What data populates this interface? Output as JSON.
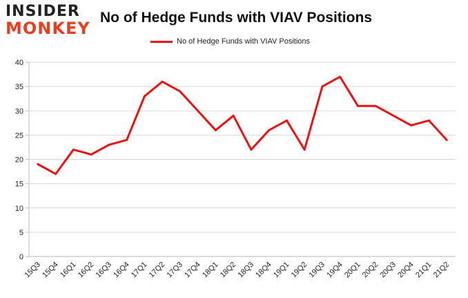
{
  "logo": {
    "line1": "INSIDER",
    "line2": "MONKEY"
  },
  "colors": {
    "line": "#ee1111",
    "grid": "#d9d9d9",
    "logo_accent": "#e8401e"
  },
  "chart_data": {
    "type": "line",
    "title": "No of Hedge Funds with VIAV Positions",
    "categories": [
      "15Q3",
      "15Q4",
      "16Q1",
      "16Q2",
      "16Q3",
      "16Q4",
      "17Q1",
      "17Q2",
      "17Q3",
      "17Q4",
      "18Q1",
      "18Q2",
      "18Q3",
      "18Q4",
      "19Q1",
      "19Q2",
      "19Q3",
      "19Q4",
      "20Q1",
      "20Q2",
      "20Q3",
      "20Q4",
      "21Q1",
      "21Q2"
    ],
    "series": [
      {
        "name": "No of Hedge Funds with VIAV Positions",
        "values": [
          19,
          17,
          22,
          21,
          23,
          24,
          33,
          36,
          34,
          30,
          26,
          29,
          22,
          26,
          28,
          22,
          35,
          37,
          31,
          31,
          29,
          27,
          28,
          24
        ]
      }
    ],
    "ylim": [
      0,
      40
    ],
    "yticks": [
      0,
      5,
      10,
      15,
      20,
      25,
      30,
      35,
      40
    ],
    "grid": true,
    "legend": "top-center"
  }
}
